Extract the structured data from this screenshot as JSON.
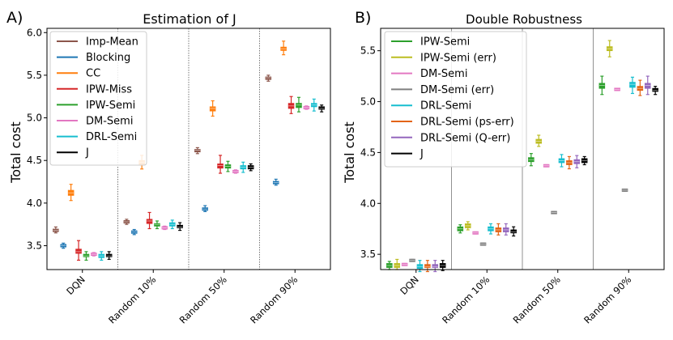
{
  "chart_data": [
    {
      "type": "box",
      "panel_label": "A)",
      "title": "Estimation of J",
      "xlabel": "",
      "ylabel": "Total cost",
      "ylim": [
        3.22,
        6.05
      ],
      "yticks": [
        "3.5",
        "4.0",
        "4.5",
        "5.0",
        "5.5",
        "6.0"
      ],
      "categories": [
        "DQN",
        "Random 10%",
        "Random 50%",
        "Random 90%"
      ],
      "grid": false,
      "legend_position": "top-left",
      "series": [
        {
          "name": "Imp-Mean",
          "color": "#8c564b",
          "values": [
            {
              "q1": 3.67,
              "median": 3.68,
              "q3": 3.69,
              "lo": 3.65,
              "hi": 3.72
            },
            {
              "q1": 3.77,
              "median": 3.78,
              "q3": 3.79,
              "lo": 3.75,
              "hi": 3.81
            },
            {
              "q1": 4.6,
              "median": 4.62,
              "q3": 4.63,
              "lo": 4.58,
              "hi": 4.65
            },
            {
              "q1": 5.45,
              "median": 5.47,
              "q3": 5.48,
              "lo": 5.43,
              "hi": 5.5
            }
          ]
        },
        {
          "name": "Blocking",
          "color": "#1f77b4",
          "values": [
            {
              "q1": 3.49,
              "median": 3.5,
              "q3": 3.51,
              "lo": 3.47,
              "hi": 3.53
            },
            {
              "q1": 3.65,
              "median": 3.66,
              "q3": 3.67,
              "lo": 3.63,
              "hi": 3.69
            },
            {
              "q1": 3.92,
              "median": 3.93,
              "q3": 3.94,
              "lo": 3.9,
              "hi": 3.97
            },
            {
              "q1": 4.23,
              "median": 4.24,
              "q3": 4.25,
              "lo": 4.21,
              "hi": 4.28
            }
          ]
        },
        {
          "name": "CC",
          "color": "#ff7f0e",
          "values": [
            {
              "q1": 4.09,
              "median": 4.12,
              "q3": 4.15,
              "lo": 4.03,
              "hi": 4.22
            },
            {
              "q1": 4.45,
              "median": 4.48,
              "q3": 4.5,
              "lo": 4.4,
              "hi": 4.56
            },
            {
              "q1": 5.08,
              "median": 5.11,
              "q3": 5.13,
              "lo": 5.02,
              "hi": 5.2
            },
            {
              "q1": 5.79,
              "median": 5.81,
              "q3": 5.83,
              "lo": 5.74,
              "hi": 5.9
            }
          ]
        },
        {
          "name": "IPW-Miss",
          "color": "#d62728",
          "values": [
            {
              "q1": 3.41,
              "median": 3.43,
              "q3": 3.46,
              "lo": 3.33,
              "hi": 3.56
            },
            {
              "q1": 3.76,
              "median": 3.79,
              "q3": 3.81,
              "lo": 3.7,
              "hi": 3.89
            },
            {
              "q1": 4.41,
              "median": 4.44,
              "q3": 4.46,
              "lo": 4.35,
              "hi": 4.56
            },
            {
              "q1": 5.11,
              "median": 5.14,
              "q3": 5.17,
              "lo": 5.05,
              "hi": 5.25
            }
          ]
        },
        {
          "name": "IPW-Semi",
          "color": "#2ca02c",
          "values": [
            {
              "q1": 3.37,
              "median": 3.38,
              "q3": 3.4,
              "lo": 3.33,
              "hi": 3.43
            },
            {
              "q1": 3.73,
              "median": 3.75,
              "q3": 3.76,
              "lo": 3.7,
              "hi": 3.79
            },
            {
              "q1": 4.41,
              "median": 4.43,
              "q3": 4.45,
              "lo": 4.37,
              "hi": 4.49
            },
            {
              "q1": 5.12,
              "median": 5.15,
              "q3": 5.17,
              "lo": 5.07,
              "hi": 5.24
            }
          ]
        },
        {
          "name": "DM-Semi",
          "color": "#e377c2",
          "values": [
            {
              "q1": 3.39,
              "median": 3.4,
              "q3": 3.41,
              "lo": 3.38,
              "hi": 3.42
            },
            {
              "q1": 3.7,
              "median": 3.71,
              "q3": 3.72,
              "lo": 3.69,
              "hi": 3.73
            },
            {
              "q1": 4.36,
              "median": 4.37,
              "q3": 4.38,
              "lo": 4.35,
              "hi": 4.39
            },
            {
              "q1": 5.11,
              "median": 5.12,
              "q3": 5.13,
              "lo": 5.1,
              "hi": 5.14
            }
          ]
        },
        {
          "name": "DRL-Semi",
          "color": "#17becf",
          "values": [
            {
              "q1": 3.36,
              "median": 3.38,
              "q3": 3.4,
              "lo": 3.33,
              "hi": 3.43
            },
            {
              "q1": 3.73,
              "median": 3.75,
              "q3": 3.77,
              "lo": 3.7,
              "hi": 3.8
            },
            {
              "q1": 4.4,
              "median": 4.42,
              "q3": 4.44,
              "lo": 4.36,
              "hi": 4.48
            },
            {
              "q1": 5.13,
              "median": 5.15,
              "q3": 5.17,
              "lo": 5.08,
              "hi": 5.22
            }
          ]
        },
        {
          "name": "J",
          "color": "#000000",
          "values": [
            {
              "q1": 3.37,
              "median": 3.38,
              "q3": 3.4,
              "lo": 3.34,
              "hi": 3.43
            },
            {
              "q1": 3.71,
              "median": 3.72,
              "q3": 3.74,
              "lo": 3.68,
              "hi": 3.77
            },
            {
              "q1": 4.4,
              "median": 4.42,
              "q3": 4.44,
              "lo": 4.38,
              "hi": 4.46
            },
            {
              "q1": 5.1,
              "median": 5.11,
              "q3": 5.13,
              "lo": 5.07,
              "hi": 5.15
            }
          ]
        }
      ]
    },
    {
      "type": "box",
      "panel_label": "B)",
      "title": "Double Robustness",
      "xlabel": "",
      "ylabel": "Total cost",
      "ylim": [
        3.35,
        5.72
      ],
      "yticks": [
        "3.5",
        "4.0",
        "4.5",
        "5.0",
        "5.5"
      ],
      "categories": [
        "DQN",
        "Random 10%",
        "Random 50%",
        "Random 90%"
      ],
      "grid": false,
      "legend_position": "top-left",
      "series": [
        {
          "name": "IPW-Semi",
          "color": "#2ca02c",
          "values": [
            {
              "q1": 3.37,
              "median": 3.39,
              "q3": 3.41,
              "lo": 3.35,
              "hi": 3.43
            },
            {
              "q1": 3.73,
              "median": 3.75,
              "q3": 3.77,
              "lo": 3.71,
              "hi": 3.79
            },
            {
              "q1": 4.41,
              "median": 4.43,
              "q3": 4.45,
              "lo": 4.37,
              "hi": 4.49
            },
            {
              "q1": 5.13,
              "median": 5.16,
              "q3": 5.18,
              "lo": 5.07,
              "hi": 5.25
            }
          ]
        },
        {
          "name": "IPW-Semi (err)",
          "color": "#bcbd22",
          "values": [
            {
              "q1": 3.37,
              "median": 3.39,
              "q3": 3.41,
              "lo": 3.35,
              "hi": 3.45
            },
            {
              "q1": 3.76,
              "median": 3.78,
              "q3": 3.8,
              "lo": 3.74,
              "hi": 3.82
            },
            {
              "q1": 4.59,
              "median": 4.61,
              "q3": 4.63,
              "lo": 4.56,
              "hi": 4.67
            },
            {
              "q1": 5.5,
              "median": 5.52,
              "q3": 5.54,
              "lo": 5.44,
              "hi": 5.6
            }
          ]
        },
        {
          "name": "DM-Semi",
          "color": "#e377c2",
          "values": [
            {
              "q1": 3.39,
              "median": 3.4,
              "q3": 3.41,
              "lo": 3.39,
              "hi": 3.41
            },
            {
              "q1": 3.7,
              "median": 3.71,
              "q3": 3.72,
              "lo": 3.7,
              "hi": 3.72
            },
            {
              "q1": 4.36,
              "median": 4.37,
              "q3": 4.38,
              "lo": 4.36,
              "hi": 4.38
            },
            {
              "q1": 5.11,
              "median": 5.12,
              "q3": 5.13,
              "lo": 5.11,
              "hi": 5.13
            }
          ]
        },
        {
          "name": "DM-Semi (err)",
          "color": "#7f7f7f",
          "values": [
            {
              "q1": 3.43,
              "median": 3.44,
              "q3": 3.45,
              "lo": 3.43,
              "hi": 3.45
            },
            {
              "q1": 3.59,
              "median": 3.6,
              "q3": 3.61,
              "lo": 3.59,
              "hi": 3.61
            },
            {
              "q1": 3.9,
              "median": 3.91,
              "q3": 3.92,
              "lo": 3.9,
              "hi": 3.92
            },
            {
              "q1": 4.12,
              "median": 4.13,
              "q3": 4.14,
              "lo": 4.12,
              "hi": 4.14
            }
          ]
        },
        {
          "name": "DRL-Semi",
          "color": "#17becf",
          "values": [
            {
              "q1": 3.36,
              "median": 3.38,
              "q3": 3.4,
              "lo": 3.33,
              "hi": 3.44
            },
            {
              "q1": 3.73,
              "median": 3.75,
              "q3": 3.77,
              "lo": 3.7,
              "hi": 3.8
            },
            {
              "q1": 4.4,
              "median": 4.42,
              "q3": 4.44,
              "lo": 4.36,
              "hi": 4.48
            },
            {
              "q1": 5.14,
              "median": 5.17,
              "q3": 5.19,
              "lo": 5.08,
              "hi": 5.24
            }
          ]
        },
        {
          "name": "DRL-Semi (ps-err)",
          "color": "#e36414",
          "values": [
            {
              "q1": 3.37,
              "median": 3.38,
              "q3": 3.4,
              "lo": 3.33,
              "hi": 3.44
            },
            {
              "q1": 3.72,
              "median": 3.74,
              "q3": 3.76,
              "lo": 3.69,
              "hi": 3.8
            },
            {
              "q1": 4.38,
              "median": 4.4,
              "q3": 4.42,
              "lo": 4.34,
              "hi": 4.46
            },
            {
              "q1": 5.11,
              "median": 5.13,
              "q3": 5.15,
              "lo": 5.06,
              "hi": 5.21
            }
          ]
        },
        {
          "name": "DRL-Semi (Q-err)",
          "color": "#9467bd",
          "values": [
            {
              "q1": 3.37,
              "median": 3.38,
              "q3": 3.4,
              "lo": 3.33,
              "hi": 3.44
            },
            {
              "q1": 3.72,
              "median": 3.74,
              "q3": 3.76,
              "lo": 3.69,
              "hi": 3.8
            },
            {
              "q1": 4.39,
              "median": 4.41,
              "q3": 4.43,
              "lo": 4.35,
              "hi": 4.47
            },
            {
              "q1": 5.13,
              "median": 5.16,
              "q3": 5.18,
              "lo": 5.07,
              "hi": 5.25
            }
          ]
        },
        {
          "name": "J",
          "color": "#000000",
          "values": [
            {
              "q1": 3.37,
              "median": 3.39,
              "q3": 3.41,
              "lo": 3.34,
              "hi": 3.44
            },
            {
              "q1": 3.71,
              "median": 3.72,
              "q3": 3.74,
              "lo": 3.68,
              "hi": 3.77
            },
            {
              "q1": 4.4,
              "median": 4.42,
              "q3": 4.44,
              "lo": 4.38,
              "hi": 4.46
            },
            {
              "q1": 5.1,
              "median": 5.11,
              "q3": 5.13,
              "lo": 5.07,
              "hi": 5.15
            }
          ]
        }
      ]
    }
  ]
}
